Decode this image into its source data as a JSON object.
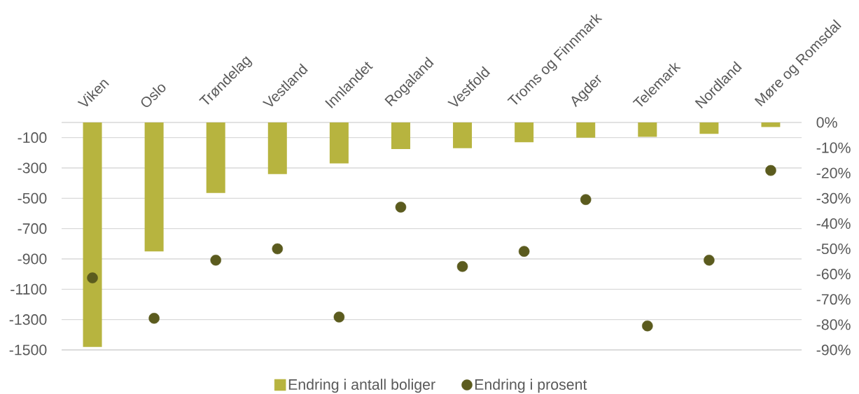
{
  "chart_data": {
    "type": "bar",
    "categories": [
      "Viken",
      "Oslo",
      "Trøndelag",
      "Vestland",
      "Innlandet",
      "Rogaland",
      "Vestfold",
      "Troms og Finnmark",
      "Agder",
      "Telemark",
      "Nordland",
      "Møre og Romsdal"
    ],
    "series": [
      {
        "name": "Endring i antall boliger",
        "color": "#b7b43f",
        "values": [
          -1480,
          -850,
          -465,
          -340,
          -270,
          -175,
          -170,
          -130,
          -100,
          -95,
          -75,
          -30
        ]
      },
      {
        "name": "Endring i prosent",
        "type": "scatter",
        "axis": "y2",
        "marker": "circle",
        "color": "#5b5b1e",
        "values": [
          -61.5,
          -77.5,
          -54.5,
          -50,
          -77,
          -33.5,
          -57,
          -51,
          -30.5,
          -80.5,
          -54.5,
          -19
        ]
      }
    ],
    "ylim": [
      -1500,
      0
    ],
    "yticks": [
      -1500,
      -1300,
      -1100,
      -900,
      -700,
      -500,
      -300,
      -100
    ],
    "y2lim": [
      -90,
      0
    ],
    "y2ticks": [
      {
        "value": 0,
        "label": "0%"
      },
      {
        "value": -10,
        "label": "-10%"
      },
      {
        "value": -20,
        "label": "-20%"
      },
      {
        "value": -30,
        "label": "-30%"
      },
      {
        "value": -40,
        "label": "-40%"
      },
      {
        "value": -50,
        "label": "-50%"
      },
      {
        "value": -60,
        "label": "-60%"
      },
      {
        "value": -70,
        "label": "-70%"
      },
      {
        "value": -80,
        "label": "-80%"
      },
      {
        "value": -90,
        "label": "-90%"
      }
    ],
    "grid": "y",
    "legend": "bottom"
  }
}
